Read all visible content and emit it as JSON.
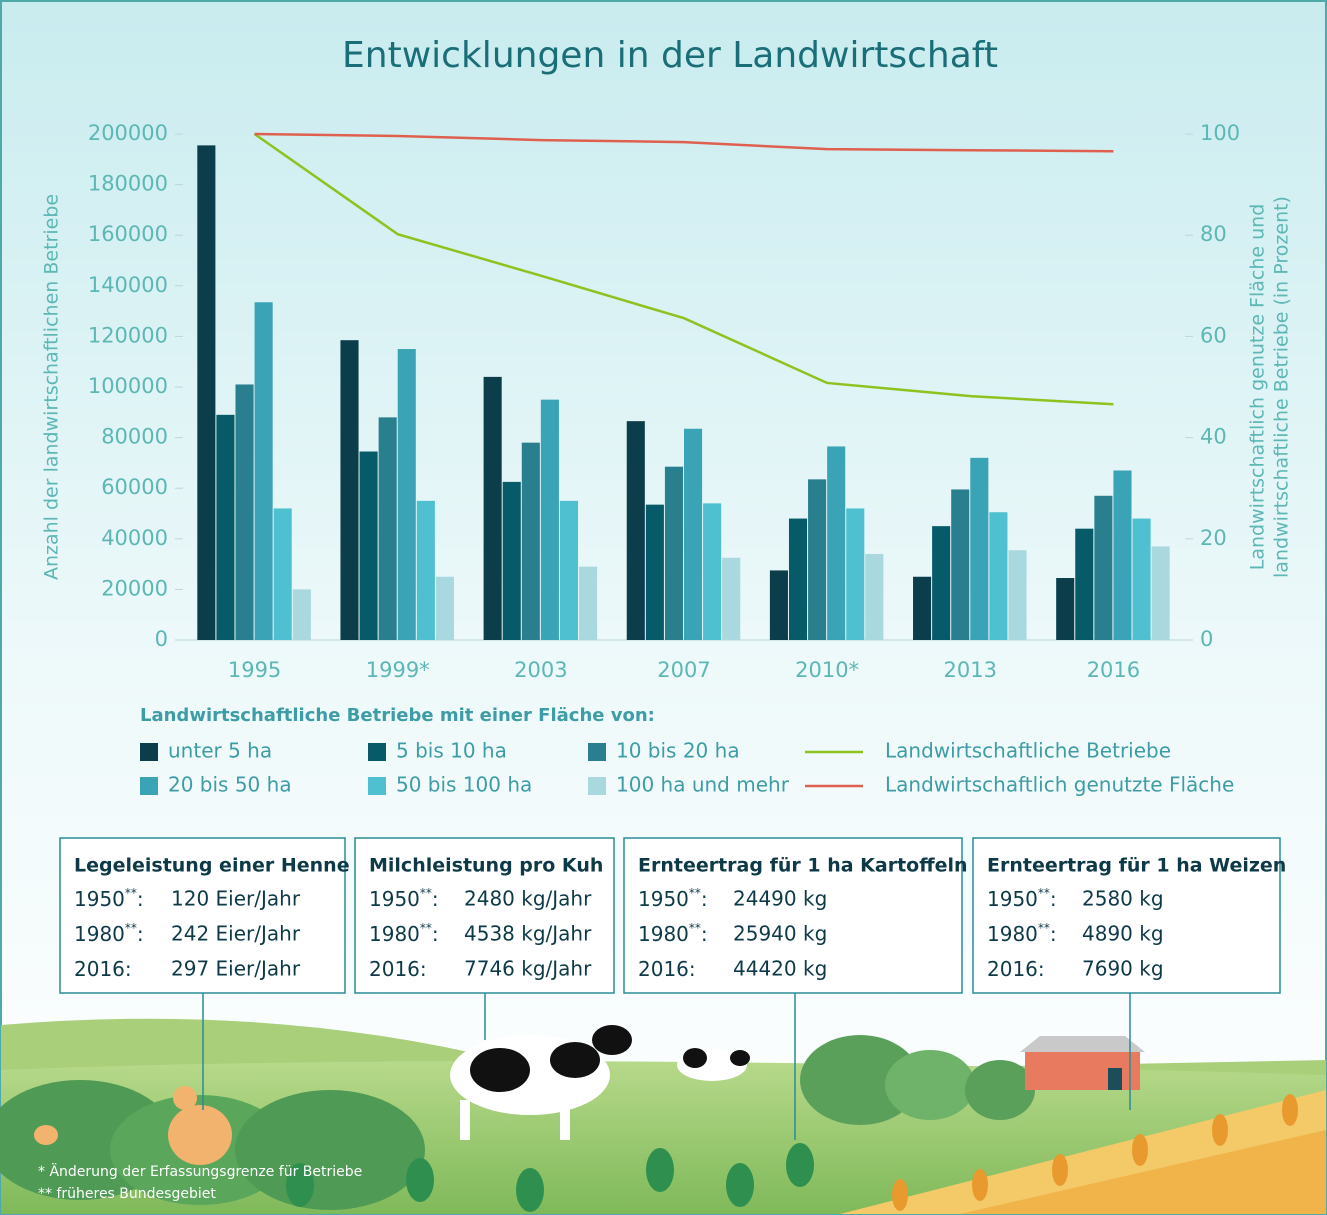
{
  "chart_data": {
    "type": "bar",
    "title": "Entwicklungen in der Landwirtschaft",
    "y_label": "Anzahl der landwirtschaftlichen Betriebe",
    "y2_label": [
      "Landwirtschaftlich genutze Fläche und",
      "landwirtschaftliche Betriebe (in Prozent)"
    ],
    "legend_title": "Landwirtschaftliche Betriebe mit einer Fläche von:",
    "categories": [
      "1995",
      "1999*",
      "2003",
      "2007",
      "2010*",
      "2013",
      "2016"
    ],
    "ylim": [
      0,
      200000
    ],
    "yticks": [
      0,
      20000,
      40000,
      60000,
      80000,
      100000,
      120000,
      140000,
      160000,
      180000,
      200000
    ],
    "y2lim": [
      0,
      100
    ],
    "y2ticks": [
      0,
      20,
      40,
      60,
      80,
      100
    ],
    "grid": false,
    "series": [
      {
        "name": "unter 5 ha",
        "color": "#0b3d4a",
        "values": [
          195500,
          118500,
          104000,
          86500,
          27500,
          25000,
          24500
        ]
      },
      {
        "name": "5 bis 10 ha",
        "color": "#075a68",
        "values": [
          89000,
          74500,
          62500,
          53500,
          48000,
          45000,
          44000
        ]
      },
      {
        "name": "10 bis 20 ha",
        "color": "#2a7f8f",
        "values": [
          101000,
          88000,
          78000,
          68500,
          63500,
          59500,
          57000
        ]
      },
      {
        "name": "20 bis 50 ha",
        "color": "#3aa3b5",
        "values": [
          133500,
          115000,
          95000,
          83500,
          76500,
          72000,
          67000
        ]
      },
      {
        "name": "50 bis 100 ha",
        "color": "#4ec0d0",
        "values": [
          52000,
          55000,
          55000,
          54000,
          52000,
          50500,
          48000
        ]
      },
      {
        "name": "100 ha und mehr",
        "color": "#a9d9df",
        "values": [
          20000,
          25000,
          29000,
          32500,
          34000,
          35500,
          37000
        ]
      },
      {
        "name": "Landwirtschaftliche Betriebe",
        "type": "line",
        "axis": "y2",
        "color": "#8dc21f",
        "values": [
          100,
          80.2,
          72,
          63.6,
          50.8,
          48.2,
          46.6
        ]
      },
      {
        "name": "Landwirtschaftlich genutzte Fläche",
        "type": "line",
        "axis": "y2",
        "color": "#e0604f",
        "values": [
          100,
          99.6,
          98.8,
          98.4,
          97,
          96.8,
          96.6
        ]
      }
    ]
  },
  "info_boxes": [
    {
      "title": "Legeleistung einer Henne",
      "rows": [
        {
          "year": "1950",
          "note": "**",
          "sep": ":",
          "value": "120 Eier/Jahr"
        },
        {
          "year": "1980",
          "note": "**",
          "sep": ":",
          "value": "242 Eier/Jahr"
        },
        {
          "year": "2016",
          "sep": ":",
          "value": "297 Eier/Jahr"
        }
      ]
    },
    {
      "title": "Milchleistung pro Kuh",
      "rows": [
        {
          "year": "1950",
          "note": "**",
          "sep": ":",
          "value": "2480 kg/Jahr"
        },
        {
          "year": "1980",
          "note": "**",
          "sep": ":",
          "value": "4538 kg/Jahr"
        },
        {
          "year": "2016",
          "sep": ":",
          "value": "7746 kg/Jahr"
        }
      ]
    },
    {
      "title": "Ernteertrag für 1 ha Kartoffeln",
      "rows": [
        {
          "year": "1950",
          "note": "**",
          "sep": ":",
          "value": "24490 kg"
        },
        {
          "year": "1980",
          "note": "**",
          "sep": ":",
          "value": "25940 kg"
        },
        {
          "year": "2016",
          "sep": ":",
          "value": "44420 kg"
        }
      ]
    },
    {
      "title": "Ernteertrag für 1 ha Weizen",
      "rows": [
        {
          "year": "1950",
          "note": "**",
          "sep": ":",
          "value": "2580 kg"
        },
        {
          "year": "1980",
          "note": "**",
          "sep": ":",
          "value": "4890 kg"
        },
        {
          "year": "2016",
          "sep": ":",
          "value": "7690 kg"
        }
      ]
    }
  ],
  "footnotes": [
    "*   Änderung der Erfassungsgrenze für Betriebe",
    "** früheres Bundesgebiet"
  ]
}
